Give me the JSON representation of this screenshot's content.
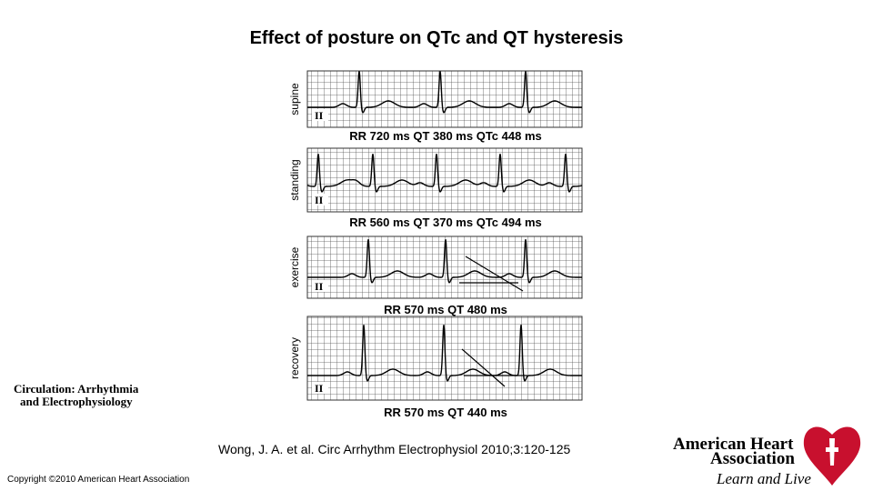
{
  "title": "Effect of posture on QTc and QT hysteresis",
  "panels": [
    {
      "label": "supine",
      "lead": "II",
      "caption": "RR 720 ms QT 380 ms QTc 448 ms"
    },
    {
      "label": "standing",
      "lead": "II",
      "caption": "RR 560 ms QT 370 ms QTc 494 ms"
    },
    {
      "label": "exercise",
      "lead": "II",
      "caption": "RR 570 ms QT 480 ms"
    },
    {
      "label": "recovery",
      "lead": "II",
      "caption": "RR 570 ms QT 440 ms"
    }
  ],
  "journal": [
    "Circulation: Arrhythmia",
    "and Electrophysiology"
  ],
  "citation": "Wong, J. A. et al. Circ Arrhythm Electrophysiol 2010;3:120-125",
  "copyright": "Copyright ©2010 American Heart Association",
  "logo": {
    "line1": "American Heart",
    "line2": "Association",
    "tagline": "Learn and Live"
  }
}
